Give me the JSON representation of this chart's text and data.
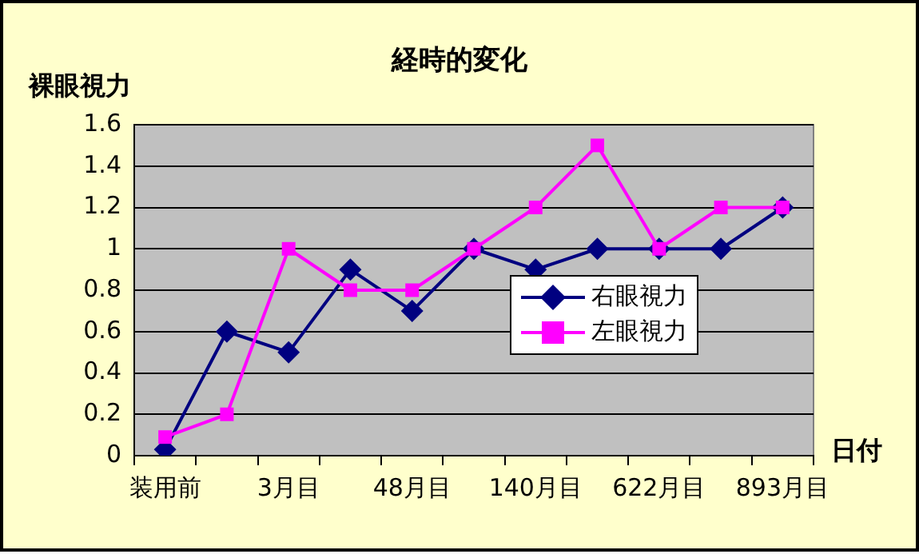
{
  "chart_data": {
    "type": "line",
    "title": "経時的変化",
    "ylabel": "裸眼視力",
    "xlabel": "日付",
    "categories": [
      "装用前",
      null,
      "3月目",
      null,
      "48月目",
      null,
      "140月目",
      null,
      "622月目",
      null,
      "893月目"
    ],
    "series": [
      {
        "name": "右眼視力",
        "color": "#000080",
        "marker": "diamond",
        "values": [
          0.03,
          0.6,
          0.5,
          0.9,
          0.7,
          1.0,
          0.9,
          1.0,
          1.0,
          1.0,
          1.2
        ]
      },
      {
        "name": "左眼視力",
        "color": "#ff00ff",
        "marker": "square",
        "values": [
          0.09,
          0.2,
          1.0,
          0.8,
          0.8,
          1.0,
          1.2,
          1.5,
          1.0,
          1.2,
          1.2
        ]
      }
    ],
    "ylim": [
      0,
      1.6
    ],
    "yticks": [
      0,
      0.2,
      0.4,
      0.6,
      0.8,
      1,
      1.2,
      1.4,
      1.6
    ],
    "grid": "y",
    "legend": "right",
    "line_style": "solid"
  }
}
